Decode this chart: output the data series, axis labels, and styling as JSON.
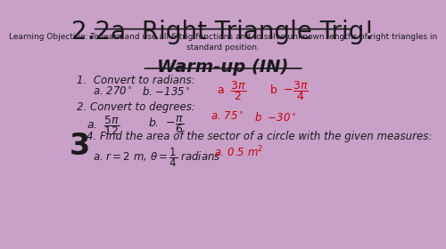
{
  "background_color": "#c8a0c8",
  "title": "2.2a  Right Triangle Trig!",
  "title_fontsize": 20,
  "learning_objective": "Learning Objective: To learn and use all 6 trig functions and to solve unknown lengths of right triangles in\nstandard position.",
  "warmup_title": "Warm-up (IN)",
  "text_color": "#1a1a1a",
  "red_color": "#cc0000"
}
